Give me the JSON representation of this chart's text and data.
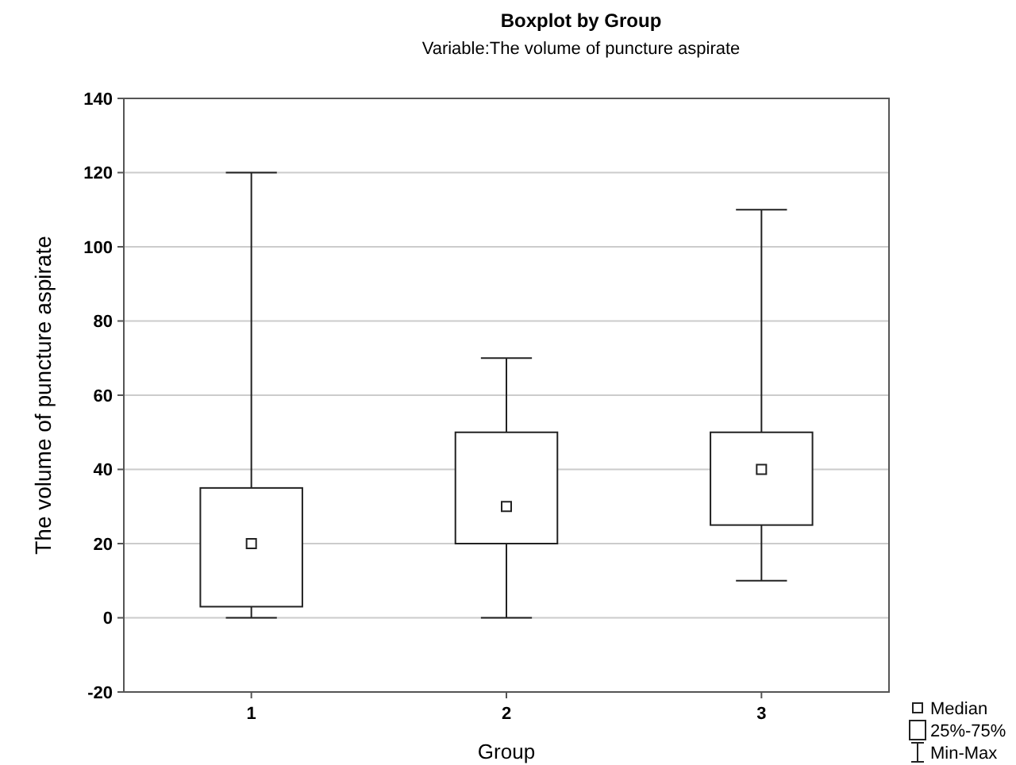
{
  "chart_data": {
    "type": "box",
    "title": "Boxplot by Group",
    "subtitle": "Variable:The volume of puncture aspirate",
    "xlabel": "Group",
    "ylabel": "The volume of puncture aspirate",
    "categories": [
      "1",
      "2",
      "3"
    ],
    "boxes": [
      {
        "low": 0,
        "q1": 3,
        "median": 20,
        "q3": 35,
        "high": 120
      },
      {
        "low": 0,
        "q1": 20,
        "median": 30,
        "q3": 50,
        "high": 70
      },
      {
        "low": 10,
        "q1": 25,
        "median": 40,
        "q3": 50,
        "high": 110
      }
    ],
    "ylim": [
      -20,
      140
    ],
    "yticks": [
      -20,
      0,
      20,
      40,
      60,
      80,
      100,
      120,
      140
    ],
    "grid": "y",
    "marker": "square",
    "annotations": [
      "Median",
      "25%-75%",
      "Min-Max"
    ]
  }
}
